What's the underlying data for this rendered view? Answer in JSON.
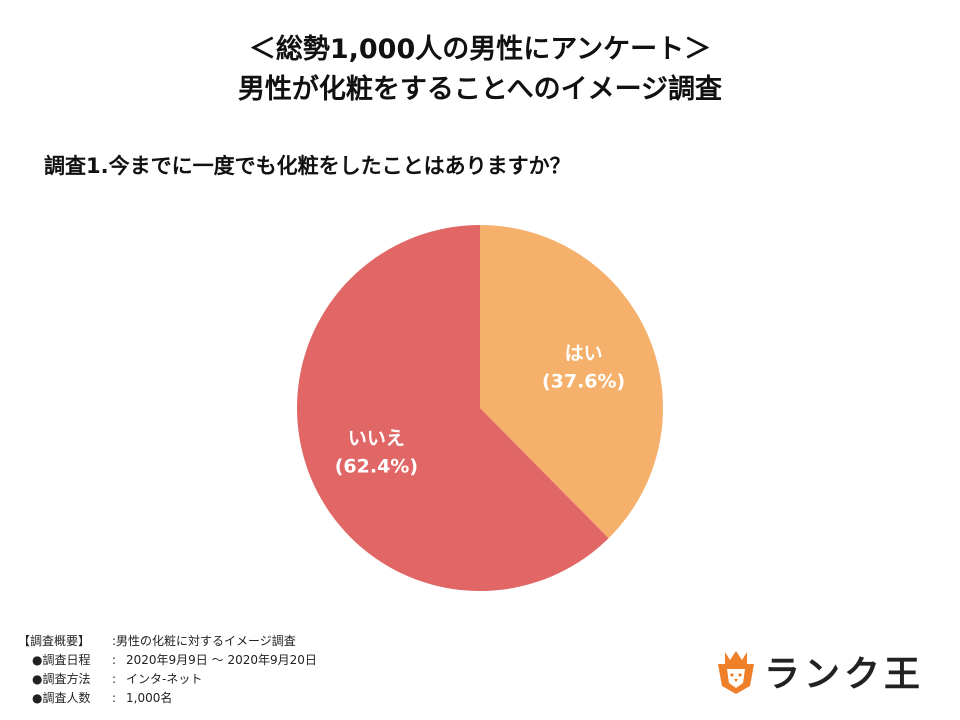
{
  "title": {
    "line1": "＜総勢1,000人の男性にアンケート＞",
    "line2": "男性が化粧をすることへのイメージ調査"
  },
  "question": "調査1.今までに一度でも化粧をしたことはありますか？",
  "chart_data": {
    "type": "pie",
    "slices": [
      {
        "label": "はい",
        "percent_label": "(37.6%)",
        "value": 37.6,
        "color": "#F5B06B"
      },
      {
        "label": "いいえ",
        "percent_label": "(62.4%)",
        "value": 62.4,
        "color": "#E06766"
      }
    ],
    "start": "12 o'clock",
    "direction": "clockwise"
  },
  "overview": {
    "heading": "【調査概要】",
    "heading_value": ":男性の化粧に対するイメージ調査",
    "items": [
      {
        "key": "●調査日程",
        "sep": ":",
        "value": "2020年9月9日 〜 2020年9月20日"
      },
      {
        "key": "●調査方法",
        "sep": ":",
        "value": "インタ-ネット"
      },
      {
        "key": "●調査人数",
        "sep": ":",
        "value": "1,000名"
      }
    ]
  },
  "logo": {
    "text": "ランク王",
    "icon": "lion-crown-icon",
    "color": "#F07F2A"
  }
}
